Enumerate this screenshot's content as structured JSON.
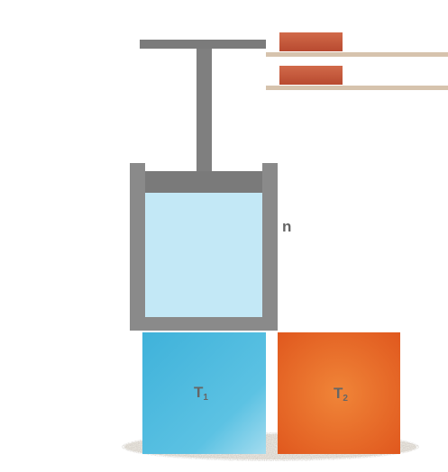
{
  "labels": {
    "n": "n",
    "reservoir_cold": {
      "symbol": "T",
      "subscript": "1"
    },
    "reservoir_hot": {
      "symbol": "T",
      "subscript": "2"
    }
  },
  "colors": {
    "piston_steel": "#7d7d7d",
    "cylinder_wall": "#8a8a8a",
    "gas": "#c3e8f6",
    "cold_reservoir": "#4ab8dc",
    "hot_reservoir": "#e8642a",
    "weight_brick": "#c85a3c",
    "shelf": "#d6c3ad",
    "sand": "#d8d2c8",
    "label_text": "#666666"
  }
}
